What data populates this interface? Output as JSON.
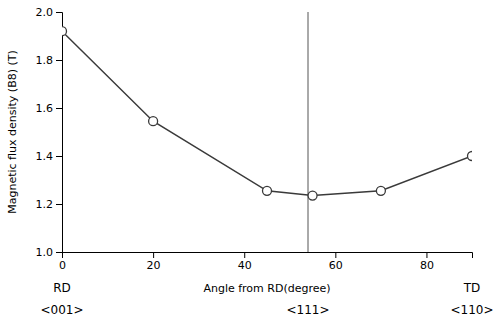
{
  "chart_data": {
    "type": "line",
    "x": [
      0,
      20,
      45,
      55,
      70,
      90
    ],
    "values": [
      1.92,
      1.545,
      1.255,
      1.235,
      1.255,
      1.4
    ],
    "color": "#3a3a3a",
    "marker": "circle",
    "xlabel": "Angle from RD(degree)",
    "ylabel": "Magnetic flux density (B8) (T)",
    "xlim": [
      0,
      90
    ],
    "ylim": [
      1.0,
      2.0
    ],
    "xticks": [
      0,
      20,
      40,
      60,
      80
    ],
    "yticks": [
      {
        "value": 1.0,
        "label": "1.0"
      },
      1.2,
      1.4,
      1.6,
      1.8,
      {
        "value": 2.0,
        "label": "2.0"
      }
    ],
    "grid": false,
    "vline": {
      "x": 54,
      "label": "<111>",
      "color": "#555555"
    },
    "annotations": [
      {
        "text": "RD",
        "x": 0
      },
      {
        "text": "<001>",
        "x": 0
      },
      {
        "text": "TD",
        "x": 90
      },
      {
        "text": "<110>",
        "x": 90
      }
    ]
  }
}
